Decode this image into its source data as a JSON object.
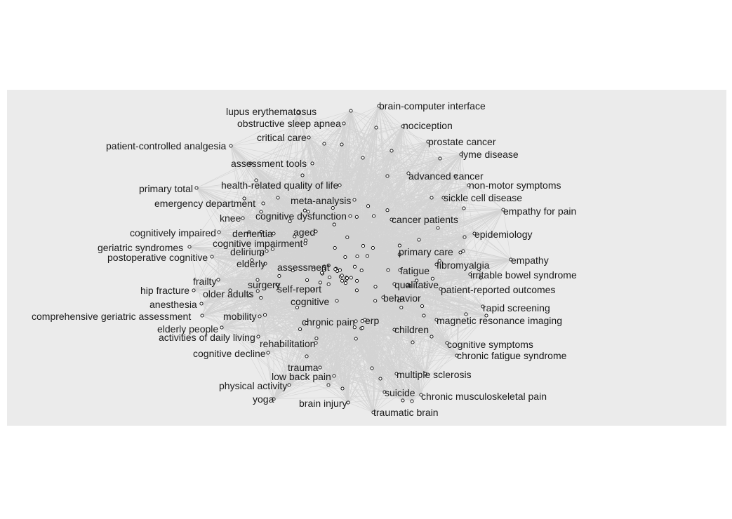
{
  "panel_background": "#ebebeb",
  "edge_color": "#555555",
  "node_fill": "#ffffff",
  "node_stroke": "#000000",
  "labels": [
    "lupus erythematosus",
    "brain-computer interface",
    "obstructive sleep apnea",
    "nociception",
    "critical care",
    "patient-controlled analgesia",
    "prostate cancer",
    "lyme disease",
    "assessment tools",
    "advanced cancer",
    "health-related quality of life",
    "non-motor symptoms",
    "primary total",
    "sickle cell disease",
    "emergency department",
    "meta-analysis",
    "empathy for pain",
    "knee",
    "cognitive dysfunction",
    "cancer patients",
    "epidemiology",
    "cognitively impaired",
    "dementia",
    "aged",
    "cognitive impairment",
    "geriatric syndromes",
    "delirium",
    "primary care",
    "postoperative cognitive",
    "empathy",
    "elderly",
    "fibromyalgia",
    "assessment",
    "fatigue",
    "irritable bowel syndrome",
    "frailty",
    "surgery",
    "qualitative",
    "hip fracture",
    "older adults",
    "self-report",
    "patient-reported outcomes",
    "anesthesia",
    "cognitive",
    "behavior",
    "rapid screening",
    "comprehensive geriatric assessment",
    "mobility",
    "erp",
    "chronic pain",
    "magnetic resonance imaging",
    "elderly people",
    "children",
    "activities of daily living",
    "rehabilitation",
    "cognitive symptoms",
    "cognitive decline",
    "chronic fatigue syndrome",
    "trauma",
    "multiple sclerosis",
    "low back pain",
    "physical activity",
    "suicide",
    "chronic musculoskeletal pain",
    "yoga",
    "brain injury",
    "traumatic brain"
  ]
}
